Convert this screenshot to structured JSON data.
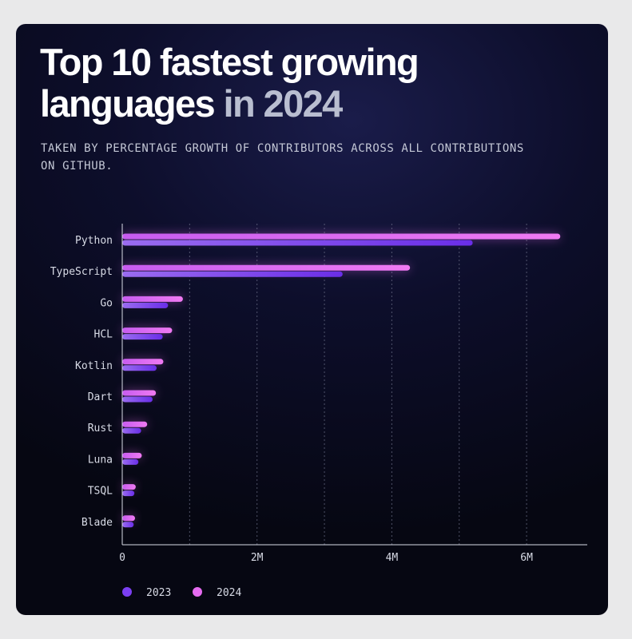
{
  "title": {
    "line1": "Top 10 fastest growing",
    "line2_main": "languages",
    "line2_accent": "in 2024"
  },
  "subtitle": "TAKEN BY PERCENTAGE GROWTH OF CONTRIBUTORS ACROSS ALL CONTRIBUTIONS ON GITHUB.",
  "colors": {
    "series_2023": "#7b3ff2",
    "series_2024": "#e56bf0",
    "grid": "#6e728a",
    "axis": "#d8dbe6"
  },
  "chart_data": {
    "type": "bar",
    "orientation": "horizontal",
    "categories": [
      "Python",
      "TypeScript",
      "Go",
      "HCL",
      "Kotlin",
      "Dart",
      "Rust",
      "Luna",
      "TSQL",
      "Blade"
    ],
    "series": [
      {
        "name": "2023",
        "values": [
          5200000,
          3270000,
          680000,
          600000,
          510000,
          450000,
          280000,
          240000,
          180000,
          170000
        ]
      },
      {
        "name": "2024",
        "values": [
          6500000,
          4270000,
          900000,
          740000,
          610000,
          500000,
          370000,
          290000,
          200000,
          190000
        ]
      }
    ],
    "x_ticks": [
      {
        "value": 0,
        "label": "0"
      },
      {
        "value": 2000000,
        "label": "2M"
      },
      {
        "value": 4000000,
        "label": "4M"
      },
      {
        "value": 6000000,
        "label": "6M"
      }
    ],
    "xlim": [
      0,
      6900000
    ],
    "grid": true,
    "legend_position": "bottom-left"
  }
}
